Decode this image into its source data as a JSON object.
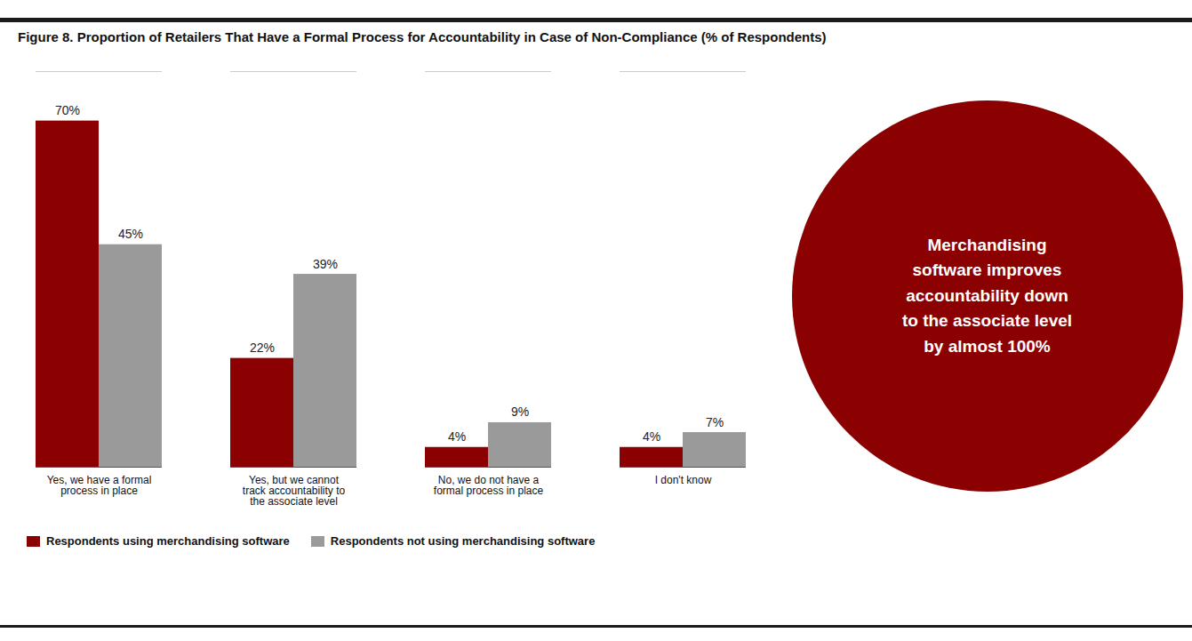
{
  "chart_data": {
    "type": "bar",
    "title": "Figure 8. Proportion of Retailers That Have a Formal Process for Accountability in Case of Non-Compliance (% of Respondents)",
    "categories": [
      "Yes, we have a formal\nprocess in place",
      "Yes, but we cannot\ntrack accountability to\nthe associate level",
      "No, we do not have a\nformal process in place",
      "I don't know"
    ],
    "series": [
      {
        "name": "Respondents using merchandising software",
        "color": "#8B0000",
        "values": [
          70,
          22,
          4,
          4
        ],
        "value_labels": [
          "70%",
          "22%",
          "4%",
          "4%"
        ]
      },
      {
        "name": "Respondents not using merchandising software",
        "color": "#9A9A9A",
        "values": [
          45,
          39,
          9,
          7
        ],
        "value_labels": [
          "45%",
          "39%",
          "9%",
          "7%"
        ]
      }
    ],
    "annotation": "Merchandising\nsoftware improves\naccountability down\nto the associate level\nby almost 100%",
    "ylim": [
      0,
      80
    ],
    "grid": false,
    "legend": "bottom",
    "data_labels": true,
    "tick_labels": "x"
  }
}
